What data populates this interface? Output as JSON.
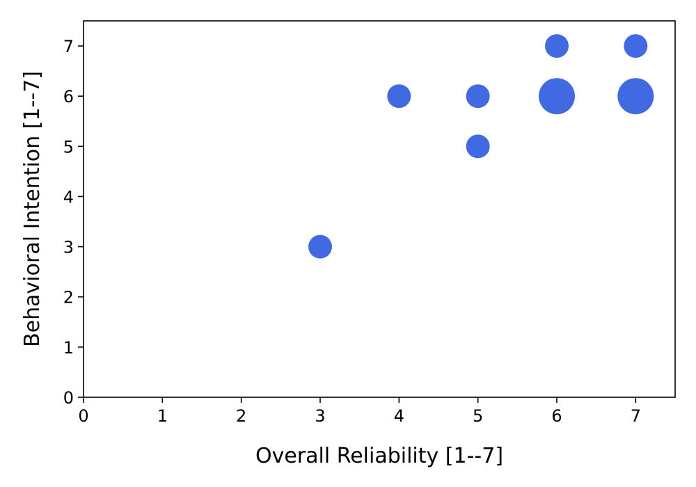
{
  "chart_data": {
    "type": "scatter",
    "xlabel": "Overall Reliability [1--7]",
    "ylabel": "Behavioral Intention [1--7]",
    "xlim": [
      0,
      7.5
    ],
    "ylim": [
      0,
      7.5
    ],
    "xticks": [
      "0",
      "1",
      "2",
      "3",
      "4",
      "5",
      "6",
      "7"
    ],
    "yticks": [
      "0",
      "1",
      "2",
      "3",
      "4",
      "5",
      "6",
      "7"
    ],
    "grid": false,
    "marker_color": "#4169E1",
    "points": [
      {
        "x": 3,
        "y": 3,
        "count": 1
      },
      {
        "x": 4,
        "y": 6,
        "count": 1
      },
      {
        "x": 5,
        "y": 5,
        "count": 1
      },
      {
        "x": 5,
        "y": 6,
        "count": 1
      },
      {
        "x": 6,
        "y": 6,
        "count": 2
      },
      {
        "x": 6,
        "y": 7,
        "count": 1
      },
      {
        "x": 7,
        "y": 6,
        "count": 2
      },
      {
        "x": 7,
        "y": 7,
        "count": 1
      }
    ]
  }
}
